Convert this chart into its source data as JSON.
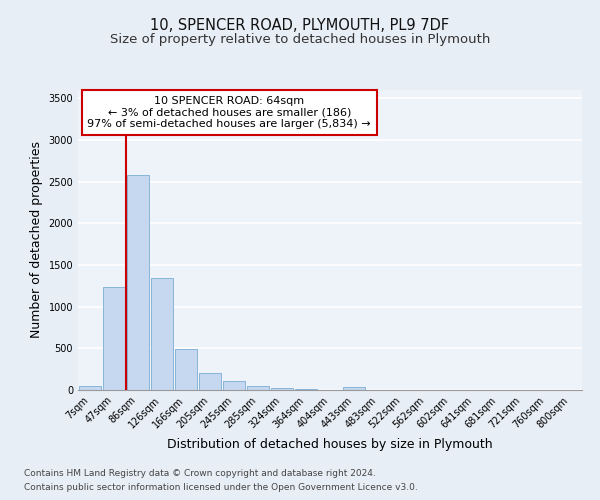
{
  "title1": "10, SPENCER ROAD, PLYMOUTH, PL9 7DF",
  "title2": "Size of property relative to detached houses in Plymouth",
  "xlabel": "Distribution of detached houses by size in Plymouth",
  "ylabel": "Number of detached properties",
  "categories": [
    "7sqm",
    "47sqm",
    "86sqm",
    "126sqm",
    "166sqm",
    "205sqm",
    "245sqm",
    "285sqm",
    "324sqm",
    "364sqm",
    "404sqm",
    "443sqm",
    "483sqm",
    "522sqm",
    "562sqm",
    "602sqm",
    "641sqm",
    "681sqm",
    "721sqm",
    "760sqm",
    "800sqm"
  ],
  "values": [
    50,
    1240,
    2580,
    1340,
    495,
    200,
    110,
    45,
    25,
    10,
    5,
    40,
    3,
    0,
    0,
    0,
    0,
    0,
    0,
    0,
    0
  ],
  "bar_color": "#c5d8f0",
  "bar_edge_color": "#7aadd4",
  "property_label": "10 SPENCER ROAD: 64sqm",
  "annotation_line1": "← 3% of detached houses are smaller (186)",
  "annotation_line2": "97% of semi-detached houses are larger (5,834) →",
  "annotation_box_color": "#ffffff",
  "annotation_border_color": "#cc0000",
  "vline_color": "#cc0000",
  "vline_x_idx": 1.5,
  "ylim": [
    0,
    3600
  ],
  "yticks": [
    0,
    500,
    1000,
    1500,
    2000,
    2500,
    3000,
    3500
  ],
  "footer1": "Contains HM Land Registry data © Crown copyright and database right 2024.",
  "footer2": "Contains public sector information licensed under the Open Government Licence v3.0.",
  "bg_color": "#e8eef6",
  "plot_bg_color": "#eef3fa",
  "grid_color": "#ffffff",
  "title1_fontsize": 10.5,
  "title2_fontsize": 9.5,
  "axis_label_fontsize": 9,
  "tick_fontsize": 7,
  "footer_fontsize": 6.5,
  "annot_fontsize": 8
}
